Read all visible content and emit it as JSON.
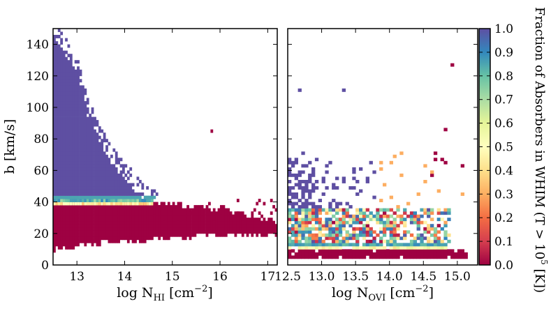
{
  "chart_data": [
    {
      "type": "heatmap",
      "panel": "left",
      "xlabel_prefix": "log N",
      "xlabel_sub": "HI",
      "xlabel_suffix": " [cm",
      "xlabel_sup": "−2",
      "xlabel_close": "]",
      "ylabel": "b [km/s]",
      "xlim": [
        12.5,
        17.2
      ],
      "ylim": [
        0,
        150
      ],
      "xticks": [
        13,
        14,
        15,
        16,
        17
      ],
      "xtick_labels": [
        "13",
        "14",
        "15",
        "16",
        "17"
      ],
      "yticks": [
        0,
        20,
        40,
        60,
        80,
        100,
        120,
        140
      ],
      "ytick_labels": [
        "0",
        "20",
        "40",
        "60",
        "80",
        "100",
        "120",
        "140"
      ],
      "regions": [
        {
          "name": "hot-envelope",
          "fraction": 1.0,
          "description": "b above ~41 km/s, extent shrinks with N_HI",
          "upper_b_vs_logN": [
            [
              12.5,
              150
            ],
            [
              13.0,
              125
            ],
            [
              13.2,
              100
            ],
            [
              13.5,
              80
            ],
            [
              13.8,
              65
            ],
            [
              14.1,
              55
            ],
            [
              14.4,
              46
            ],
            [
              14.6,
              42
            ]
          ]
        },
        {
          "name": "transition-band",
          "fraction_range": [
            0.3,
            0.7
          ],
          "b_range": [
            39,
            42
          ],
          "logN_range": [
            12.5,
            14.6
          ]
        },
        {
          "name": "cool-bulk",
          "fraction": 0.0,
          "lower_b_vs_logN": [
            [
              12.5,
              8
            ],
            [
              13.5,
              12
            ],
            [
              14.5,
              14
            ],
            [
              15.5,
              16
            ],
            [
              16.5,
              17
            ],
            [
              17.2,
              18
            ]
          ],
          "upper_b_vs_logN": [
            [
              12.5,
              39
            ],
            [
              14.6,
              40
            ],
            [
              15.5,
              37
            ],
            [
              16.2,
              34
            ],
            [
              16.8,
              30
            ],
            [
              17.2,
              27
            ]
          ]
        }
      ],
      "outliers": [
        {
          "logN": 15.8,
          "b": 84,
          "fraction": 0.0
        }
      ]
    },
    {
      "type": "heatmap",
      "panel": "right",
      "xlabel_prefix": "log N",
      "xlabel_sub": "OVI",
      "xlabel_suffix": " [cm",
      "xlabel_sup": "−2",
      "xlabel_close": "]",
      "xlim": [
        12.5,
        15.3
      ],
      "ylim": [
        0,
        150
      ],
      "xticks": [
        12.5,
        13.0,
        13.5,
        14.0,
        14.5,
        15.0
      ],
      "xtick_labels": [
        "12.5",
        "13.0",
        "13.5",
        "14.0",
        "14.5",
        "15.0"
      ],
      "regions": [
        {
          "name": "cool-floor",
          "fraction": 0.0,
          "b_range": [
            3,
            9
          ],
          "logN_range": [
            12.5,
            15.1
          ]
        },
        {
          "name": "warm-mix",
          "fraction_range": [
            0.2,
            0.9
          ],
          "b_range": [
            9,
            35
          ],
          "logN_range": [
            12.5,
            14.9
          ]
        },
        {
          "name": "hot-scatter",
          "fraction": 1.0,
          "b_range": [
            35,
            70
          ],
          "logN_range": [
            12.5,
            13.6
          ]
        }
      ],
      "outliers": [
        {
          "logN": 13.3,
          "b": 110,
          "fraction": 1.0
        },
        {
          "logN": 14.9,
          "b": 126,
          "fraction": 0.0
        },
        {
          "logN": 14.8,
          "b": 85,
          "fraction": 0.0
        },
        {
          "logN": 12.65,
          "b": 110,
          "fraction": 1.0
        }
      ]
    }
  ],
  "colorbar": {
    "label_prefix": "Fraction of Absorbers in WHIM (T > 10",
    "label_sup": "5",
    "label_suffix": " [K])",
    "range": [
      0.0,
      1.0
    ],
    "ticks": [
      0.0,
      0.1,
      0.2,
      0.3,
      0.4,
      0.5,
      0.6,
      0.7,
      0.8,
      0.9,
      1.0
    ],
    "tick_labels": [
      "0.0",
      "0.1",
      "0.2",
      "0.3",
      "0.4",
      "0.5",
      "0.6",
      "0.7",
      "0.8",
      "0.9",
      "1.0"
    ],
    "colormap": "Spectral",
    "stops": [
      {
        "v": 0.0,
        "color": "#9e0142"
      },
      {
        "v": 0.1,
        "color": "#d53e4f"
      },
      {
        "v": 0.2,
        "color": "#f46d43"
      },
      {
        "v": 0.3,
        "color": "#fdae61"
      },
      {
        "v": 0.4,
        "color": "#fee08b"
      },
      {
        "v": 0.5,
        "color": "#ffffbf"
      },
      {
        "v": 0.6,
        "color": "#e6f598"
      },
      {
        "v": 0.7,
        "color": "#abdda4"
      },
      {
        "v": 0.8,
        "color": "#66c2a5"
      },
      {
        "v": 0.9,
        "color": "#3288bd"
      },
      {
        "v": 1.0,
        "color": "#5e4fa2"
      }
    ]
  }
}
